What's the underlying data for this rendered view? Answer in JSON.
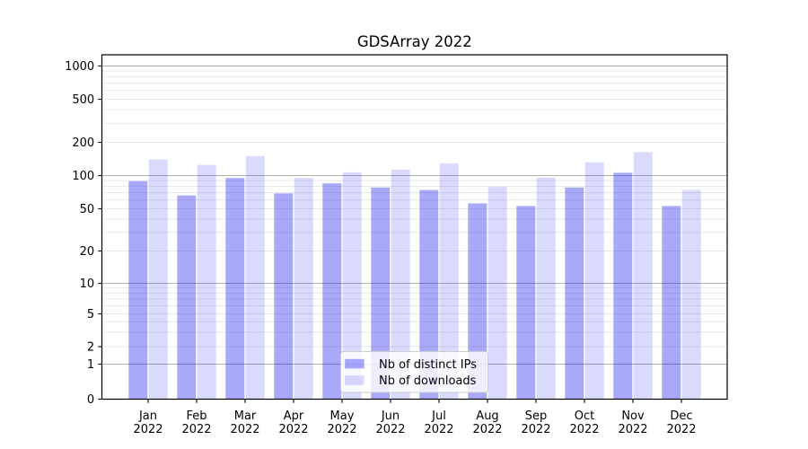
{
  "figure": {
    "background": "#ffffff"
  },
  "chart_data": {
    "type": "bar",
    "title": "GDSArray 2022",
    "categories": [
      "Jan 2022",
      "Feb 2022",
      "Mar 2022",
      "Apr 2022",
      "May 2022",
      "Jun 2022",
      "Jul 2022",
      "Aug 2022",
      "Sep 2022",
      "Oct 2022",
      "Nov 2022",
      "Dec 2022"
    ],
    "series": [
      {
        "name": "Nb of distinct IPs",
        "base_color": "#0a0af0",
        "alpha": 0.35,
        "apparent_color": "#a9a9fa",
        "values": [
          89,
          66,
          95,
          69,
          85,
          78,
          74,
          56,
          53,
          78,
          106,
          53
        ]
      },
      {
        "name": "Nb of downloads",
        "base_color": "#0a0af0",
        "alpha": 0.15,
        "apparent_color": "#dadafd",
        "values": [
          140,
          125,
          150,
          95,
          107,
          113,
          129,
          79,
          96,
          132,
          163,
          74
        ]
      }
    ],
    "xlabel": "",
    "ylabel": "",
    "yscale": "symlog",
    "y_ticks": [
      0,
      1,
      2,
      5,
      10,
      20,
      50,
      100,
      200,
      500,
      1000
    ],
    "ylim": [
      0,
      1270
    ],
    "grid": {
      "show": "both",
      "major_color": "#b0b0b0",
      "minor_color": "#e9e9e9"
    },
    "axis": {
      "spine_color": "#000000",
      "tick_color": "#000000"
    },
    "legend": {
      "position": "inside-bottom-center",
      "background": "#ffffff",
      "border_color": "#cccccc",
      "entries": [
        "Nb of distinct IPs",
        "Nb of downloads"
      ]
    }
  }
}
